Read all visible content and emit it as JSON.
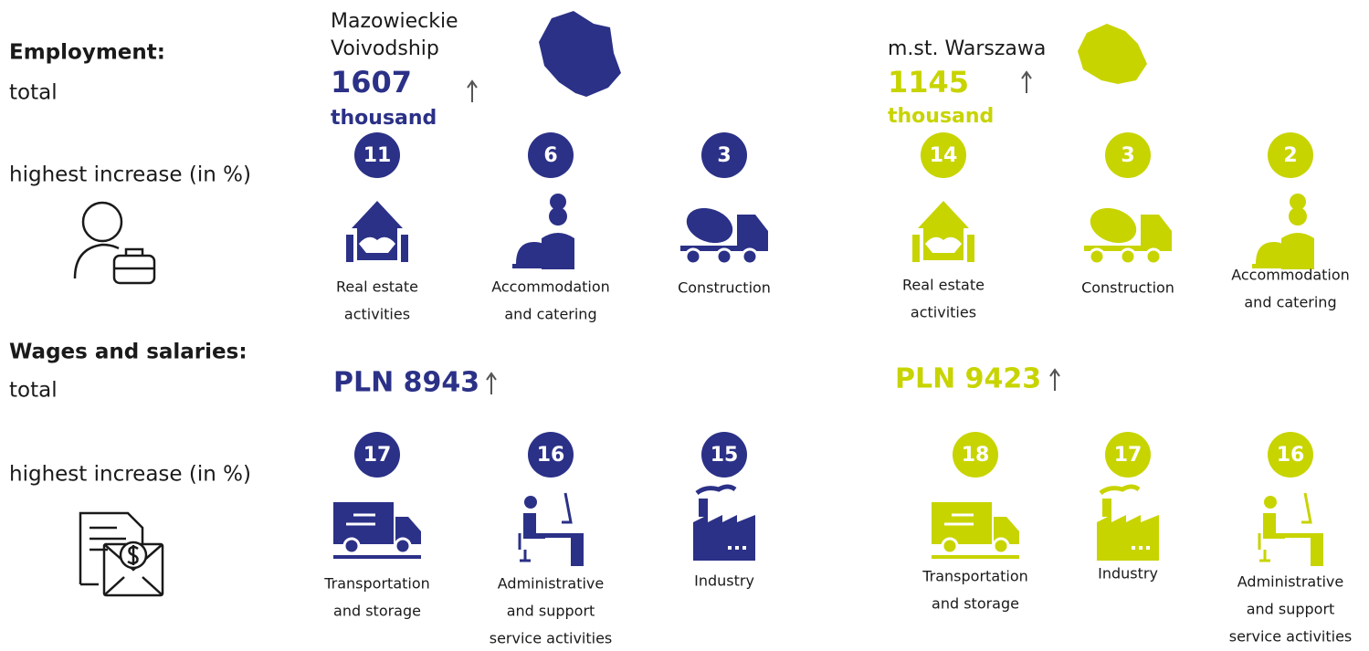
{
  "labels": {
    "employment": "Employment:",
    "employment_total": "total",
    "employment_increase": "highest increase (in %)",
    "wages": "Wages and salaries:",
    "wages_total": "total",
    "wages_increase": "highest increase (in %)"
  },
  "regions": [
    {
      "name": [
        "Mazowieckie",
        "Voivodship"
      ],
      "employment_total": "1607",
      "employment_unit": "thousand",
      "employment_industries": [
        {
          "value": 11,
          "label": [
            "Real estate",
            "activities"
          ]
        },
        {
          "value": 6,
          "label": [
            "Accommodation",
            "and catering"
          ]
        },
        {
          "value": 3,
          "label": [
            "Construction"
          ]
        }
      ],
      "wages_total": "PLN 8943",
      "wages_industries": [
        {
          "value": 17,
          "label": [
            "Transportation",
            "and storage"
          ]
        },
        {
          "value": 16,
          "label": [
            "Administrative",
            "and support",
            "service activities"
          ]
        },
        {
          "value": 15,
          "label": [
            "Industry"
          ]
        }
      ]
    },
    {
      "name": [
        "m.st. Warszawa"
      ],
      "employment_total": "1145",
      "employment_unit": "thousand",
      "employment_industries": [
        {
          "value": 14,
          "label": [
            "Real estate",
            "activities"
          ]
        },
        {
          "value": 3,
          "label": [
            "Construction"
          ]
        },
        {
          "value": 2,
          "label": [
            "Accommodation",
            "and catering"
          ]
        }
      ],
      "wages_total": "PLN 9423",
      "wages_industries": [
        {
          "value": 18,
          "label": [
            "Transportation",
            "and storage"
          ]
        },
        {
          "value": 17,
          "label": [
            "Industry"
          ]
        },
        {
          "value": 16,
          "label": [
            "Administrative",
            "and support",
            "service activities"
          ]
        }
      ]
    }
  ]
}
